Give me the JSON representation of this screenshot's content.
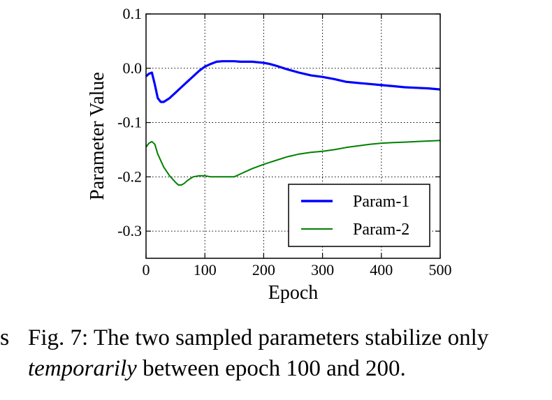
{
  "chart_data": {
    "type": "line",
    "xlabel": "Epoch",
    "ylabel": "Parameter Value",
    "xlim": [
      0,
      500
    ],
    "ylim": [
      -0.35,
      0.1
    ],
    "xticks": [
      0,
      100,
      200,
      300,
      400,
      500
    ],
    "yticks": [
      0.1,
      0.0,
      -0.1,
      -0.2,
      -0.3
    ],
    "xtick_labels": [
      "0",
      "100",
      "200",
      "300",
      "400",
      "500"
    ],
    "ytick_labels": [
      "0.1",
      "0.0",
      "-0.1",
      "-0.2",
      "-0.3"
    ],
    "grid": true,
    "legend_position": "bottom-right",
    "series": [
      {
        "name": "Param-1",
        "color": "#0000ff",
        "x": [
          0,
          5,
          10,
          15,
          20,
          25,
          30,
          40,
          50,
          60,
          70,
          80,
          90,
          100,
          110,
          120,
          130,
          140,
          150,
          160,
          170,
          180,
          190,
          200,
          210,
          220,
          240,
          260,
          280,
          300,
          320,
          340,
          360,
          380,
          400,
          420,
          440,
          460,
          480,
          500
        ],
        "y": [
          -0.015,
          -0.01,
          -0.008,
          -0.03,
          -0.055,
          -0.062,
          -0.062,
          -0.055,
          -0.045,
          -0.035,
          -0.025,
          -0.015,
          -0.005,
          0.003,
          0.008,
          0.012,
          0.013,
          0.013,
          0.013,
          0.012,
          0.012,
          0.012,
          0.011,
          0.01,
          0.008,
          0.005,
          -0.002,
          -0.008,
          -0.013,
          -0.016,
          -0.02,
          -0.025,
          -0.027,
          -0.029,
          -0.031,
          -0.033,
          -0.035,
          -0.036,
          -0.037,
          -0.039
        ]
      },
      {
        "name": "Param-2",
        "color": "#008000",
        "x": [
          0,
          5,
          10,
          15,
          20,
          30,
          40,
          50,
          55,
          60,
          65,
          70,
          80,
          90,
          100,
          110,
          120,
          130,
          140,
          150,
          160,
          180,
          200,
          220,
          240,
          260,
          280,
          300,
          320,
          340,
          360,
          380,
          400,
          420,
          440,
          460,
          480,
          500
        ],
        "y": [
          -0.145,
          -0.138,
          -0.135,
          -0.14,
          -0.158,
          -0.182,
          -0.198,
          -0.21,
          -0.215,
          -0.215,
          -0.212,
          -0.207,
          -0.2,
          -0.198,
          -0.198,
          -0.2,
          -0.2,
          -0.2,
          -0.2,
          -0.2,
          -0.195,
          -0.185,
          -0.177,
          -0.17,
          -0.163,
          -0.158,
          -0.155,
          -0.153,
          -0.15,
          -0.146,
          -0.143,
          -0.14,
          -0.138,
          -0.137,
          -0.136,
          -0.135,
          -0.134,
          -0.133
        ]
      }
    ]
  },
  "caption": {
    "edge_mark": "s",
    "prefix": "Fig. 7: The two sampled parameters stabilize only ",
    "emphasis": "temporarily",
    "suffix": " between epoch 100 and 200."
  }
}
